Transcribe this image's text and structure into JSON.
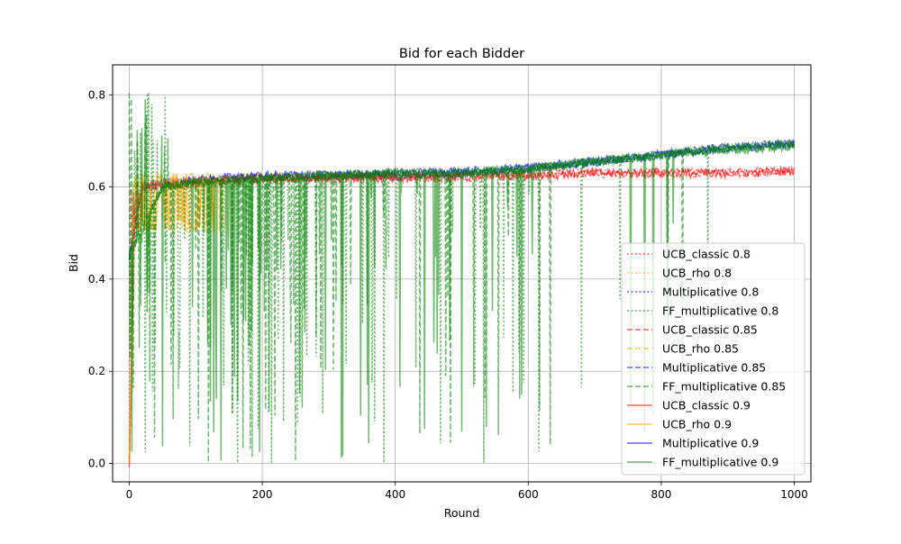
{
  "chart_data": {
    "type": "line",
    "title": "Bid for each Bidder",
    "xlabel": "Round",
    "ylabel": "Bid",
    "xlim": [
      -25,
      1025
    ],
    "ylim": [
      -0.04,
      0.865
    ],
    "xticks": [
      0,
      200,
      400,
      600,
      800,
      1000
    ],
    "xtick_labels": [
      "0",
      "200",
      "400",
      "600",
      "800",
      "1000"
    ],
    "yticks": [
      0.0,
      0.2,
      0.4,
      0.6,
      0.8
    ],
    "ytick_labels": [
      "0.0",
      "0.2",
      "0.4",
      "0.6",
      "0.8"
    ],
    "grid": true,
    "legend_position": "lower right",
    "colors": {
      "red": "#ff0000",
      "orange": "#ffa500",
      "blue": "#0000ff",
      "green": "#008000"
    },
    "line_styles": {
      "0.8": "dotted",
      "0.85": "dashed",
      "0.9": "solid"
    },
    "series": [
      {
        "name": "UCB_classic 0.8",
        "color": "red",
        "dash": "0.8",
        "x": [
          0,
          10,
          20,
          50,
          100,
          200,
          300,
          400,
          500,
          600,
          700,
          800,
          900,
          1000
        ],
        "y": [
          0.0,
          0.6,
          0.52,
          0.6,
          0.61,
          0.62,
          0.62,
          0.62,
          0.62,
          0.63,
          0.63,
          0.63,
          0.63,
          0.635
        ]
      },
      {
        "name": "UCB_rho 0.8",
        "color": "orange",
        "dash": "0.8",
        "x": [
          0,
          10,
          20,
          50,
          100,
          150
        ],
        "y": [
          0.0,
          0.75,
          0.5,
          0.6,
          0.51,
          0.62
        ]
      },
      {
        "name": "Multiplicative 0.8",
        "color": "blue",
        "dash": "0.8",
        "x": [
          0,
          20,
          50,
          100,
          200,
          300,
          400,
          500,
          600,
          700,
          800,
          900,
          1000
        ],
        "y": [
          0.45,
          0.6,
          0.61,
          0.615,
          0.62,
          0.625,
          0.625,
          0.63,
          0.64,
          0.655,
          0.67,
          0.685,
          0.695
        ]
      },
      {
        "name": "FF_multiplicative 0.8",
        "color": "green",
        "dash": "0.8",
        "x": [
          0,
          50,
          100,
          200,
          300,
          400,
          500,
          600,
          700,
          800,
          900,
          1000
        ],
        "y": [
          0.45,
          0.6,
          0.61,
          0.62,
          0.625,
          0.63,
          0.63,
          0.64,
          0.655,
          0.67,
          0.685,
          0.695
        ]
      },
      {
        "name": "UCB_classic 0.85",
        "color": "red",
        "dash": "0.85",
        "x": [
          0,
          10,
          50,
          100,
          200,
          300,
          400,
          500,
          600,
          700,
          800,
          900,
          1000
        ],
        "y": [
          0.0,
          0.6,
          0.6,
          0.61,
          0.62,
          0.62,
          0.62,
          0.62,
          0.625,
          0.63,
          0.63,
          0.63,
          0.635
        ]
      },
      {
        "name": "UCB_rho 0.85",
        "color": "orange",
        "dash": "0.85",
        "x": [
          0,
          10,
          30,
          60,
          100,
          140
        ],
        "y": [
          0.02,
          0.7,
          0.5,
          0.6,
          0.5,
          0.6
        ]
      },
      {
        "name": "Multiplicative 0.85",
        "color": "blue",
        "dash": "0.85",
        "x": [
          0,
          20,
          100,
          200,
          300,
          400,
          500,
          600,
          700,
          800,
          900,
          1000
        ],
        "y": [
          0.45,
          0.6,
          0.615,
          0.62,
          0.625,
          0.625,
          0.63,
          0.64,
          0.655,
          0.67,
          0.685,
          0.695
        ]
      },
      {
        "name": "FF_multiplicative 0.85",
        "color": "green",
        "dash": "0.85",
        "x": [
          0,
          50,
          100,
          200,
          300,
          400,
          500,
          600,
          700,
          800,
          900,
          1000
        ],
        "y": [
          0.45,
          0.6,
          0.61,
          0.62,
          0.625,
          0.63,
          0.63,
          0.64,
          0.655,
          0.67,
          0.685,
          0.69
        ]
      },
      {
        "name": "UCB_classic 0.9",
        "color": "red",
        "dash": "0.9",
        "x": [
          0,
          10,
          20,
          50,
          100,
          200,
          300,
          400,
          500,
          600,
          700,
          800,
          900,
          1000
        ],
        "y": [
          0.0,
          0.55,
          0.6,
          0.605,
          0.61,
          0.615,
          0.62,
          0.62,
          0.625,
          0.625,
          0.63,
          0.63,
          0.63,
          0.635
        ]
      },
      {
        "name": "UCB_rho 0.9",
        "color": "orange",
        "dash": "0.9",
        "x": [
          0,
          10,
          30,
          60,
          100,
          130
        ],
        "y": [
          0.0,
          0.6,
          0.52,
          0.6,
          0.52,
          0.61
        ]
      },
      {
        "name": "Multiplicative 0.9",
        "color": "blue",
        "dash": "0.9",
        "x": [
          0,
          20,
          100,
          200,
          300,
          400,
          500,
          600,
          700,
          800,
          900,
          1000
        ],
        "y": [
          0.45,
          0.6,
          0.615,
          0.625,
          0.625,
          0.63,
          0.635,
          0.64,
          0.655,
          0.67,
          0.685,
          0.695
        ]
      },
      {
        "name": "FF_multiplicative 0.9",
        "color": "green",
        "dash": "0.9",
        "x": [
          0,
          50,
          100,
          200,
          300,
          400,
          500,
          600,
          700,
          800,
          900,
          1000
        ],
        "y": [
          0.45,
          0.6,
          0.61,
          0.62,
          0.625,
          0.63,
          0.63,
          0.64,
          0.655,
          0.67,
          0.68,
          0.69
        ]
      }
    ],
    "green_dips": {
      "description": "FF_multiplicative series repeatedly drop from near the trend line down to low values until ~round 880",
      "x_start": 0,
      "x_end": 880,
      "min_y": 0.0,
      "max_y": 0.82
    }
  }
}
